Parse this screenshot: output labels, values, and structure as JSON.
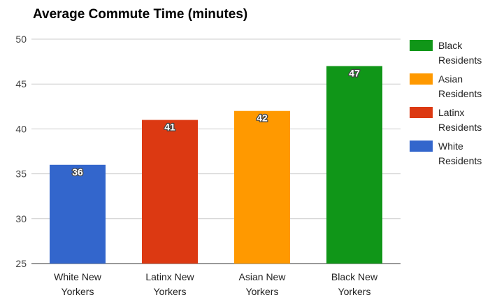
{
  "chart_data": {
    "type": "bar",
    "title": "Average Commute Time (minutes)",
    "xlabel": "",
    "ylabel": "",
    "categories": [
      [
        "White New",
        "Yorkers"
      ],
      [
        "Latinx New",
        "Yorkers"
      ],
      [
        "Asian New",
        "Yorkers"
      ],
      [
        "Black New",
        "Yorkers"
      ]
    ],
    "values": [
      36,
      41,
      42,
      47
    ],
    "colors": [
      "#3366cc",
      "#dc3912",
      "#ff9900",
      "#109618"
    ],
    "ylim": [
      25,
      50
    ],
    "yticks": [
      25,
      30,
      35,
      40,
      45,
      50
    ],
    "grid": true,
    "data_labels": true,
    "legend_position": "right",
    "legend": [
      {
        "label": [
          "Black",
          "Residents"
        ],
        "color": "#109618"
      },
      {
        "label": [
          "Asian",
          "Residents"
        ],
        "color": "#ff9900"
      },
      {
        "label": [
          "Latinx",
          "Residents"
        ],
        "color": "#dc3912"
      },
      {
        "label": [
          "White",
          "Residents"
        ],
        "color": "#3366cc"
      }
    ]
  }
}
